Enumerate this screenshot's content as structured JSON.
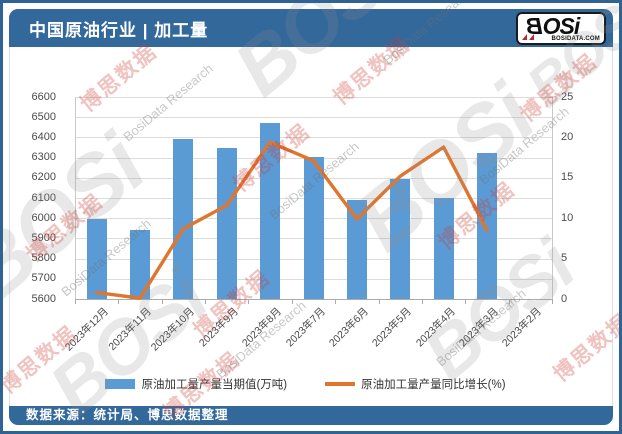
{
  "header": {
    "title": "中国原油行业 | 加工量",
    "logo": {
      "b": "B",
      "rest": "OSi",
      "sub": "BOSIDATA.COM"
    }
  },
  "footer": {
    "source": "数据来源：统计局、博思数据整理"
  },
  "watermark": {
    "text_cn": "博思数据",
    "text_en": "BosiData Research",
    "logo_text": "BOSi"
  },
  "chart_data": {
    "type": "bar",
    "title": "中国原油行业 | 加工量",
    "categories": [
      "2023年12月",
      "2023年11月",
      "2023年10月",
      "2023年9月",
      "2023年8月",
      "2023年7月",
      "2023年6月",
      "2023年5月",
      "2023年4月",
      "2023年3月",
      "2023年2月"
    ],
    "series": [
      {
        "name": "原油加工量产量当期值(万吨)",
        "type": "bar",
        "axis": "left",
        "color": "#5B9BD5",
        "values": [
          5995,
          5940,
          6390,
          6350,
          6470,
          6305,
          6090,
          6195,
          6100,
          6325,
          null
        ]
      },
      {
        "name": "原油加工量产量同比增长(%)",
        "type": "line",
        "axis": "right",
        "color": "#E0762E",
        "values": [
          0.8,
          0.1,
          8.7,
          11.6,
          19.4,
          17.1,
          9.9,
          15.2,
          18.8,
          8.5,
          null
        ]
      }
    ],
    "left_axis": {
      "min": 5600,
      "max": 6600,
      "step": 100
    },
    "right_axis": {
      "min": 0,
      "max": 25,
      "step": 5
    },
    "grid": true,
    "legend_position": "bottom",
    "colors": {
      "header_bar": "#33689B",
      "bar": "#5B9BD5",
      "line": "#E0762E",
      "gridline": "#DCDCDC"
    }
  }
}
